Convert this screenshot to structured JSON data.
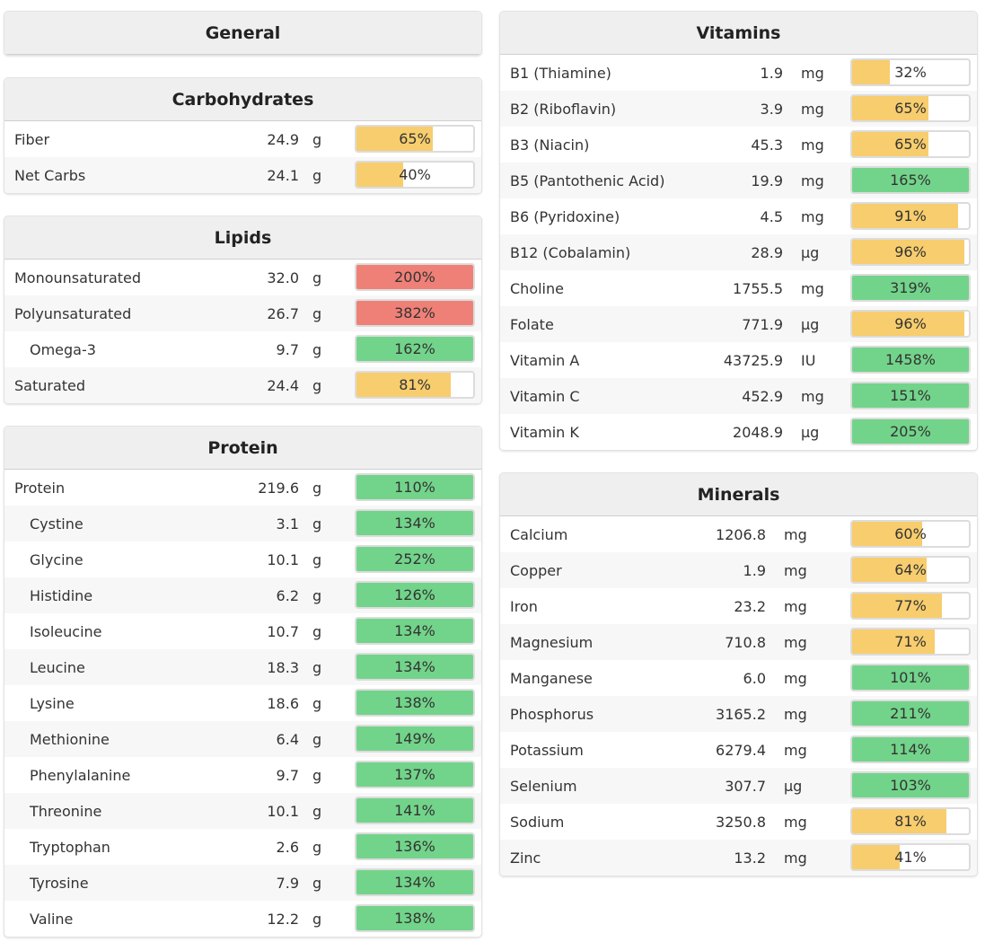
{
  "colors": {
    "low": "#f7cd6e",
    "ok": "#72d48a",
    "high": "#ef8077"
  },
  "left": [
    {
      "key": "general",
      "title": "General",
      "unit_gap": 20,
      "rows": []
    },
    {
      "key": "carbohydrates",
      "title": "Carbohydrates",
      "unit_gap": 20,
      "rows": [
        {
          "name": "Fiber",
          "amount": "24.9",
          "unit": "g",
          "pct": 65,
          "status": "low"
        },
        {
          "name": "Net Carbs",
          "amount": "24.1",
          "unit": "g",
          "pct": 40,
          "status": "low"
        }
      ]
    },
    {
      "key": "lipids",
      "title": "Lipids",
      "unit_gap": 20,
      "rows": [
        {
          "name": "Monounsaturated",
          "amount": "32.0",
          "unit": "g",
          "pct": 200,
          "status": "high"
        },
        {
          "name": "Polyunsaturated",
          "amount": "26.7",
          "unit": "g",
          "pct": 382,
          "status": "high"
        },
        {
          "name": "Omega-3",
          "amount": "9.7",
          "unit": "g",
          "pct": 162,
          "status": "ok",
          "indent": true
        },
        {
          "name": "Saturated",
          "amount": "24.4",
          "unit": "g",
          "pct": 81,
          "status": "low"
        }
      ]
    },
    {
      "key": "protein",
      "title": "Protein",
      "unit_gap": 20,
      "rows": [
        {
          "name": "Protein",
          "amount": "219.6",
          "unit": "g",
          "pct": 110,
          "status": "ok"
        },
        {
          "name": "Cystine",
          "amount": "3.1",
          "unit": "g",
          "pct": 134,
          "status": "ok",
          "indent": true
        },
        {
          "name": "Glycine",
          "amount": "10.1",
          "unit": "g",
          "pct": 252,
          "status": "ok",
          "indent": true
        },
        {
          "name": "Histidine",
          "amount": "6.2",
          "unit": "g",
          "pct": 126,
          "status": "ok",
          "indent": true
        },
        {
          "name": "Isoleucine",
          "amount": "10.7",
          "unit": "g",
          "pct": 134,
          "status": "ok",
          "indent": true
        },
        {
          "name": "Leucine",
          "amount": "18.3",
          "unit": "g",
          "pct": 134,
          "status": "ok",
          "indent": true
        },
        {
          "name": "Lysine",
          "amount": "18.6",
          "unit": "g",
          "pct": 138,
          "status": "ok",
          "indent": true
        },
        {
          "name": "Methionine",
          "amount": "6.4",
          "unit": "g",
          "pct": 149,
          "status": "ok",
          "indent": true
        },
        {
          "name": "Phenylalanine",
          "amount": "9.7",
          "unit": "g",
          "pct": 137,
          "status": "ok",
          "indent": true
        },
        {
          "name": "Threonine",
          "amount": "10.1",
          "unit": "g",
          "pct": 141,
          "status": "ok",
          "indent": true
        },
        {
          "name": "Tryptophan",
          "amount": "2.6",
          "unit": "g",
          "pct": 136,
          "status": "ok",
          "indent": true
        },
        {
          "name": "Tyrosine",
          "amount": "7.9",
          "unit": "g",
          "pct": 134,
          "status": "ok",
          "indent": true
        },
        {
          "name": "Valine",
          "amount": "12.2",
          "unit": "g",
          "pct": 138,
          "status": "ok",
          "indent": true
        }
      ]
    }
  ],
  "right": [
    {
      "key": "vitamins",
      "title": "Vitamins",
      "rows": [
        {
          "name": "B1 (Thiamine)",
          "amount": "1.9",
          "unit": "mg",
          "pct": 32,
          "status": "low"
        },
        {
          "name": "B2 (Riboflavin)",
          "amount": "3.9",
          "unit": "mg",
          "pct": 65,
          "status": "low"
        },
        {
          "name": "B3 (Niacin)",
          "amount": "45.3",
          "unit": "mg",
          "pct": 65,
          "status": "low"
        },
        {
          "name": "B5 (Pantothenic Acid)",
          "amount": "19.9",
          "unit": "mg",
          "pct": 165,
          "status": "ok"
        },
        {
          "name": "B6 (Pyridoxine)",
          "amount": "4.5",
          "unit": "mg",
          "pct": 91,
          "status": "low"
        },
        {
          "name": "B12 (Cobalamin)",
          "amount": "28.9",
          "unit": "µg",
          "pct": 96,
          "status": "low"
        },
        {
          "name": "Choline",
          "amount": "1755.5",
          "unit": "mg",
          "pct": 319,
          "status": "ok"
        },
        {
          "name": "Folate",
          "amount": "771.9",
          "unit": "µg",
          "pct": 96,
          "status": "low"
        },
        {
          "name": "Vitamin A",
          "amount": "43725.9",
          "unit": "IU",
          "pct": 1458,
          "status": "ok"
        },
        {
          "name": "Vitamin C",
          "amount": "452.9",
          "unit": "mg",
          "pct": 151,
          "status": "ok"
        },
        {
          "name": "Vitamin K",
          "amount": "2048.9",
          "unit": "µg",
          "pct": 205,
          "status": "ok"
        }
      ]
    },
    {
      "key": "minerals",
      "title": "Minerals",
      "rows": [
        {
          "name": "Calcium",
          "amount": "1206.8",
          "unit": "mg",
          "pct": 60,
          "status": "low"
        },
        {
          "name": "Copper",
          "amount": "1.9",
          "unit": "mg",
          "pct": 64,
          "status": "low"
        },
        {
          "name": "Iron",
          "amount": "23.2",
          "unit": "mg",
          "pct": 77,
          "status": "low"
        },
        {
          "name": "Magnesium",
          "amount": "710.8",
          "unit": "mg",
          "pct": 71,
          "status": "low"
        },
        {
          "name": "Manganese",
          "amount": "6.0",
          "unit": "mg",
          "pct": 101,
          "status": "ok"
        },
        {
          "name": "Phosphorus",
          "amount": "3165.2",
          "unit": "mg",
          "pct": 211,
          "status": "ok"
        },
        {
          "name": "Potassium",
          "amount": "6279.4",
          "unit": "mg",
          "pct": 114,
          "status": "ok"
        },
        {
          "name": "Selenium",
          "amount": "307.7",
          "unit": "µg",
          "pct": 103,
          "status": "ok"
        },
        {
          "name": "Sodium",
          "amount": "3250.8",
          "unit": "mg",
          "pct": 81,
          "status": "low"
        },
        {
          "name": "Zinc",
          "amount": "13.2",
          "unit": "mg",
          "pct": 41,
          "status": "low"
        }
      ]
    }
  ]
}
